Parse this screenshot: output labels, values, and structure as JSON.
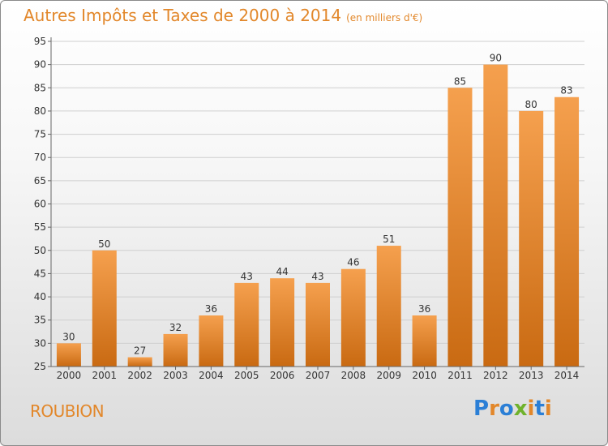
{
  "header": {
    "title": "Autres Impôts et Taxes de 2000 à 2014",
    "unit": "(en milliers d'€)"
  },
  "footer": {
    "place": "ROUBION",
    "brand": [
      "P",
      "r",
      "o",
      "x",
      "i",
      "t",
      "i"
    ],
    "brand_colors": [
      "#2b7fd6",
      "#e2872a",
      "#2b7fd6",
      "#6fb22c",
      "#e2872a",
      "#2b7fd6",
      "#e2872a"
    ]
  },
  "colors": {
    "bar_top": "#f5a04e",
    "bar_bottom": "#c96a12",
    "title": "#e2872a"
  },
  "chart_data": {
    "type": "bar",
    "title": "Autres Impôts et Taxes de 2000 à 2014",
    "subtitle": "(en milliers d'€)",
    "categories": [
      "2000",
      "2001",
      "2002",
      "2003",
      "2004",
      "2005",
      "2006",
      "2007",
      "2008",
      "2009",
      "2010",
      "2011",
      "2012",
      "2013",
      "2014"
    ],
    "values": [
      30,
      50,
      27,
      32,
      36,
      43,
      44,
      43,
      46,
      51,
      36,
      85,
      90,
      80,
      83
    ],
    "ylim": [
      25,
      95
    ],
    "yticks": [
      25,
      30,
      35,
      40,
      45,
      50,
      55,
      60,
      65,
      70,
      75,
      80,
      85,
      90,
      95
    ],
    "grid": true,
    "legend": "none"
  }
}
